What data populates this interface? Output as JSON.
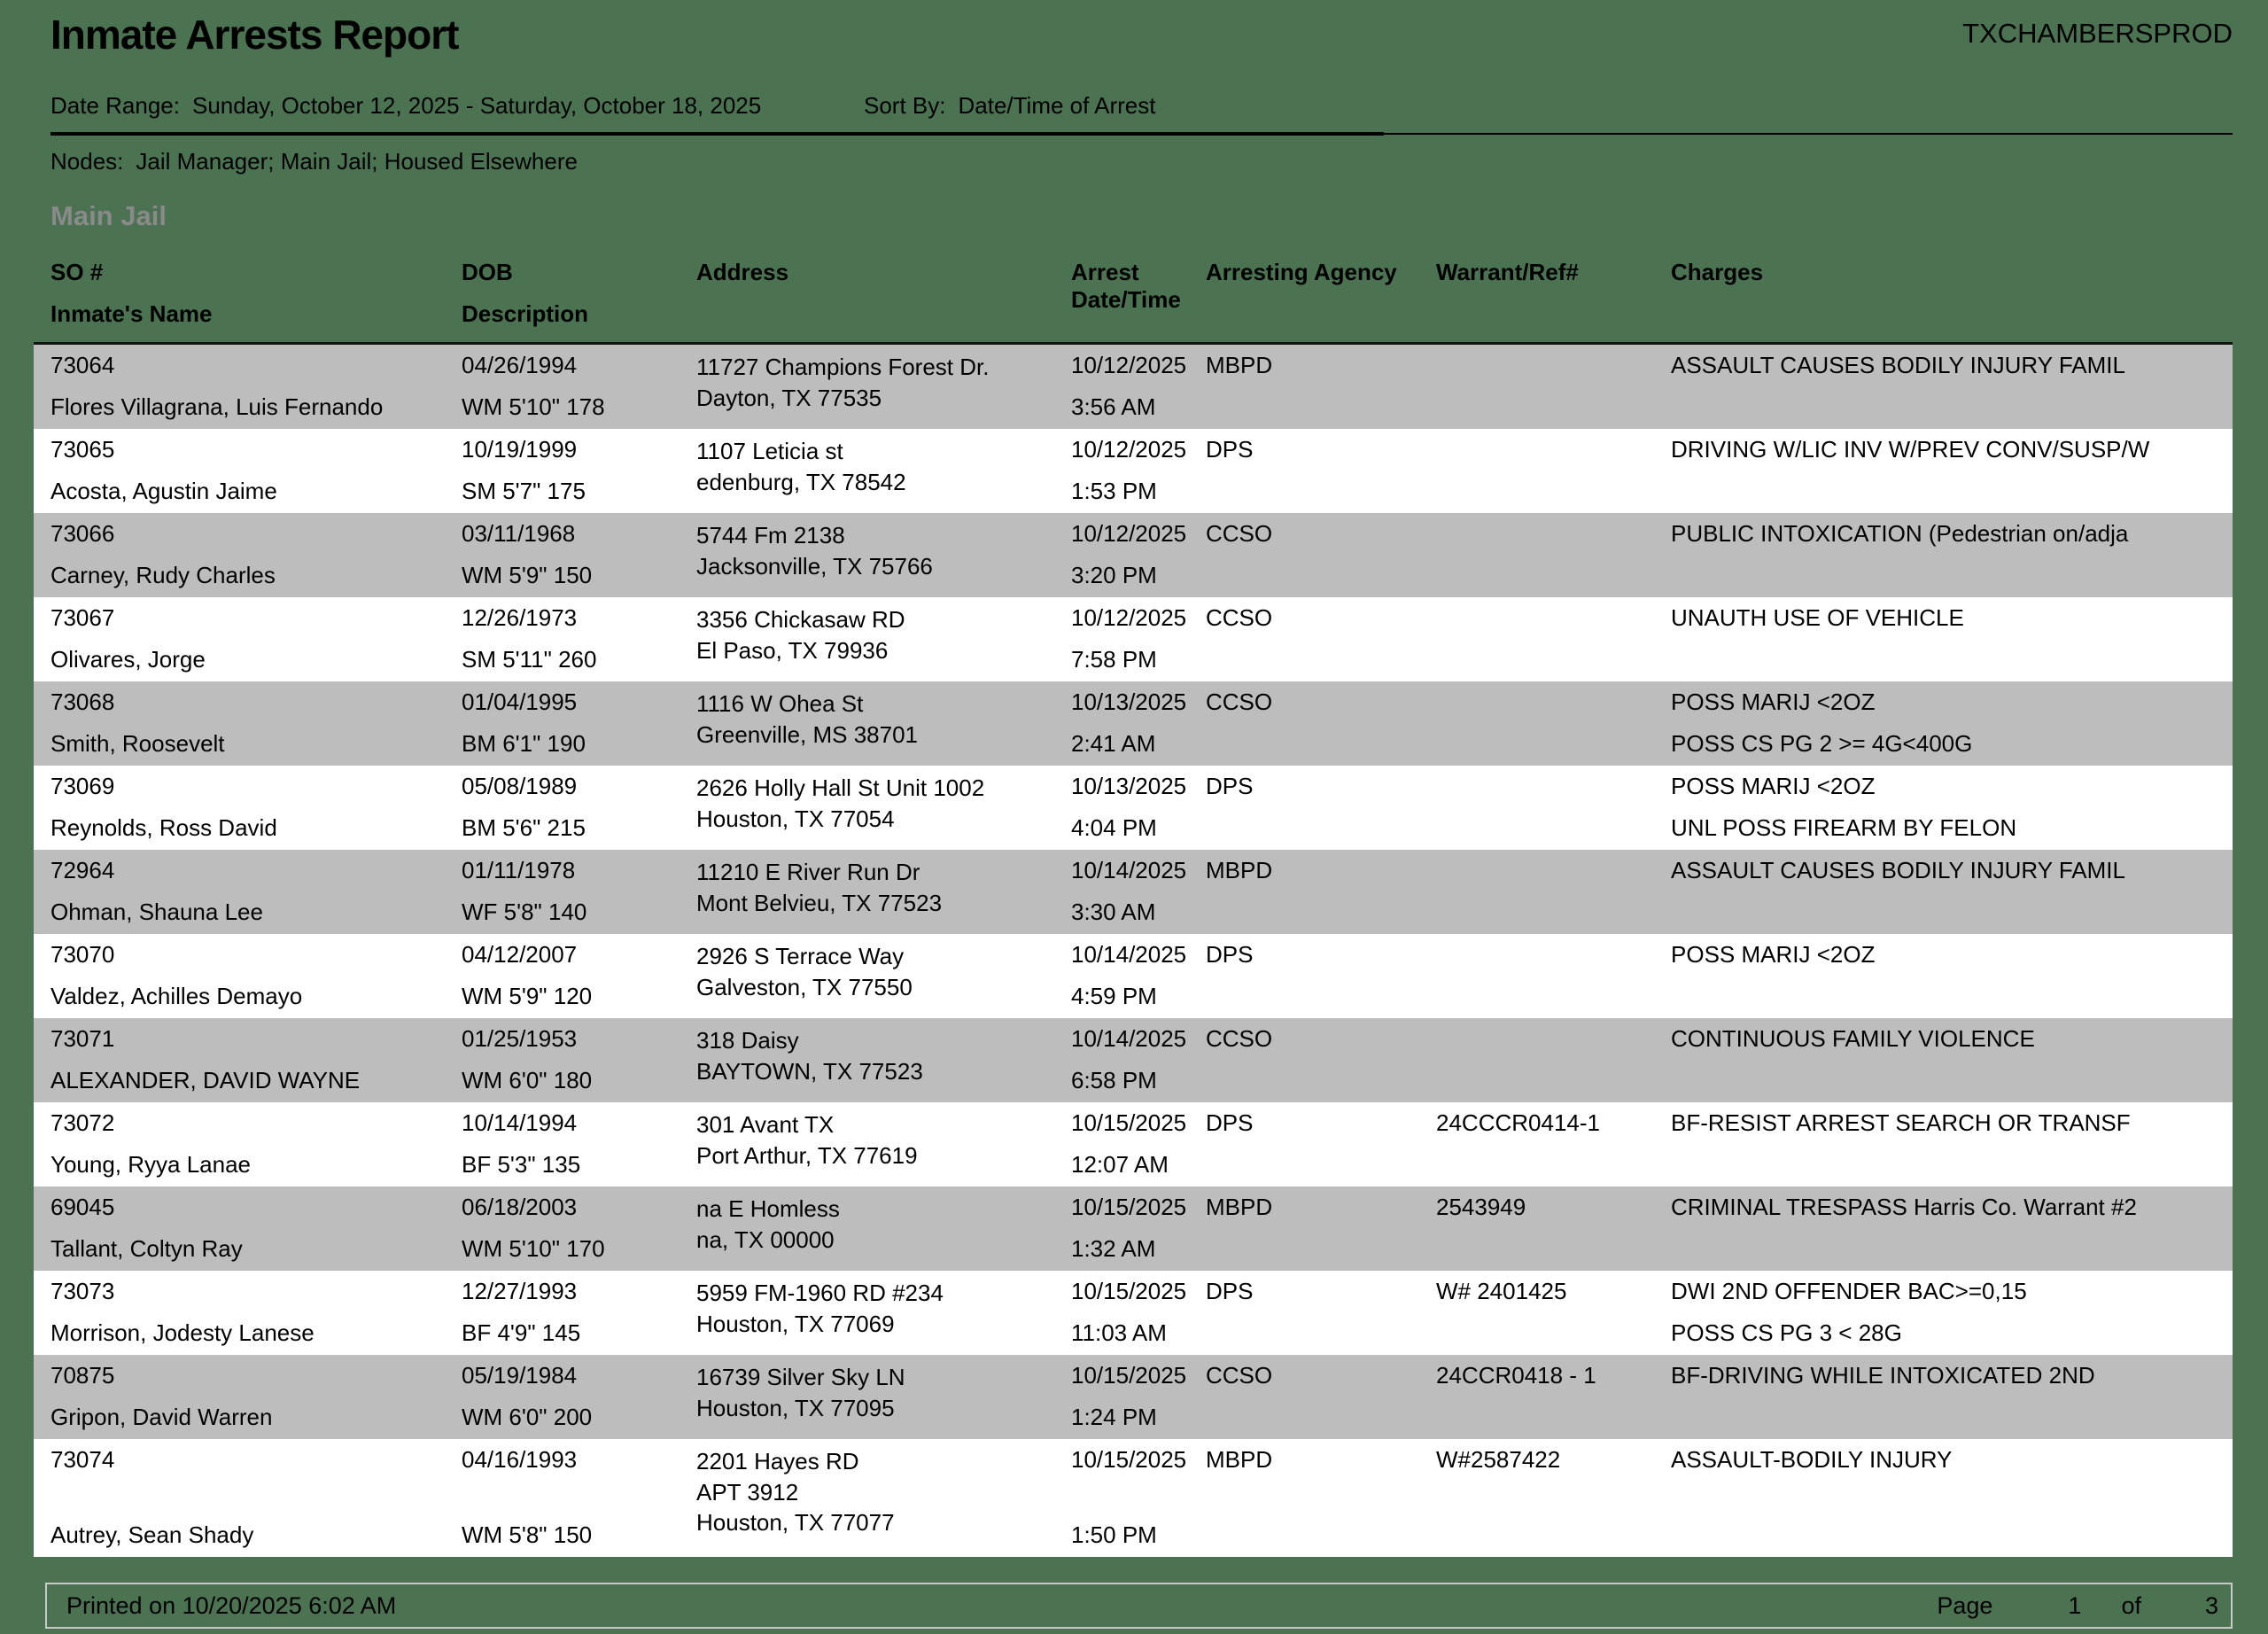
{
  "report": {
    "title": "Inmate Arrests Report",
    "environment": "TXCHAMBERSPROD",
    "date_range_label": "Date Range:",
    "date_range": "Sunday, October 12, 2025 - Saturday, October 18, 2025",
    "sort_by_label": "Sort By:",
    "sort_by": "Date/Time of Arrest",
    "nodes_label": "Nodes:",
    "nodes": "Jail Manager; Main Jail; Housed Elsewhere",
    "section": "Main Jail"
  },
  "table": {
    "headers": {
      "so": "SO #",
      "inmate_name": "Inmate's Name",
      "dob": "DOB",
      "description": "Description",
      "address": "Address",
      "arrest_line1": "Arrest",
      "arrest_line2": "Date/Time",
      "arresting_agency": "Arresting Agency",
      "warrant_ref": "Warrant/Ref#",
      "charges": "Charges"
    },
    "rows": [
      {
        "so": "73064",
        "name": "Flores Villagrana, Luis Fernando",
        "dob": "04/26/1994",
        "desc": "WM  5'10\" 178",
        "address": [
          "11727 Champions Forest Dr.",
          "Dayton, TX 77535"
        ],
        "date": "10/12/2025",
        "time": "3:56 AM",
        "agency": "MBPD",
        "warrant": "",
        "charges": [
          "ASSAULT CAUSES BODILY INJURY FAMIL"
        ]
      },
      {
        "so": "73065",
        "name": "Acosta, Agustin Jaime",
        "dob": "10/19/1999",
        "desc": "SM  5'7\" 175",
        "address": [
          "1107 Leticia st",
          "edenburg, TX 78542"
        ],
        "date": "10/12/2025",
        "time": "1:53 PM",
        "agency": "DPS",
        "warrant": "",
        "charges": [
          "DRIVING W/LIC INV W/PREV CONV/SUSP/W"
        ]
      },
      {
        "so": "73066",
        "name": "Carney, Rudy Charles",
        "dob": "03/11/1968",
        "desc": "WM  5'9\" 150",
        "address": [
          "5744 Fm 2138",
          "Jacksonville, TX 75766"
        ],
        "date": "10/12/2025",
        "time": "3:20 PM",
        "agency": "CCSO",
        "warrant": "",
        "charges": [
          "PUBLIC INTOXICATION (Pedestrian on/adja"
        ]
      },
      {
        "so": "73067",
        "name": "Olivares, Jorge",
        "dob": "12/26/1973",
        "desc": "SM  5'11\" 260",
        "address": [
          "3356 Chickasaw RD",
          "El Paso, TX 79936"
        ],
        "date": "10/12/2025",
        "time": "7:58 PM",
        "agency": "CCSO",
        "warrant": "",
        "charges": [
          "UNAUTH USE OF VEHICLE"
        ]
      },
      {
        "so": "73068",
        "name": "Smith, Roosevelt",
        "dob": "01/04/1995",
        "desc": "BM  6'1\" 190",
        "address": [
          "1116 W Ohea St",
          "Greenville, MS 38701"
        ],
        "date": "10/13/2025",
        "time": "2:41 AM",
        "agency": "CCSO",
        "warrant": "",
        "charges": [
          "POSS MARIJ <2OZ",
          "POSS CS PG 2 >= 4G<400G"
        ]
      },
      {
        "so": "73069",
        "name": "Reynolds, Ross David",
        "dob": "05/08/1989",
        "desc": "BM  5'6\" 215",
        "address": [
          "2626 Holly Hall St Unit 1002",
          "Houston, TX 77054"
        ],
        "date": "10/13/2025",
        "time": "4:04 PM",
        "agency": "DPS",
        "warrant": "",
        "charges": [
          "POSS MARIJ <2OZ",
          "UNL POSS FIREARM BY FELON"
        ]
      },
      {
        "so": "72964",
        "name": "Ohman, Shauna Lee",
        "dob": "01/11/1978",
        "desc": "WF  5'8\" 140",
        "address": [
          "11210 E River Run Dr",
          "Mont Belvieu, TX 77523"
        ],
        "date": "10/14/2025",
        "time": "3:30 AM",
        "agency": "MBPD",
        "warrant": "",
        "charges": [
          "ASSAULT CAUSES BODILY INJURY FAMIL"
        ]
      },
      {
        "so": "73070",
        "name": "Valdez, Achilles Demayo",
        "dob": "04/12/2007",
        "desc": "WM  5'9\" 120",
        "address": [
          "2926 S Terrace Way",
          "Galveston, TX 77550"
        ],
        "date": "10/14/2025",
        "time": "4:59 PM",
        "agency": "DPS",
        "warrant": "",
        "charges": [
          "POSS MARIJ <2OZ"
        ]
      },
      {
        "so": "73071",
        "name": "ALEXANDER, DAVID WAYNE",
        "dob": "01/25/1953",
        "desc": "WM  6'0\" 180",
        "address": [
          "318 Daisy",
          "BAYTOWN, TX 77523"
        ],
        "date": "10/14/2025",
        "time": "6:58 PM",
        "agency": "CCSO",
        "warrant": "",
        "charges": [
          "CONTINUOUS FAMILY VIOLENCE"
        ]
      },
      {
        "so": "73072",
        "name": "Young, Ryya Lanae",
        "dob": "10/14/1994",
        "desc": "BF  5'3\" 135",
        "address": [
          "301 Avant TX",
          "Port Arthur, TX 77619"
        ],
        "date": "10/15/2025",
        "time": "12:07 AM",
        "agency": "DPS",
        "warrant": "24CCCR0414-1",
        "charges": [
          "BF-RESIST ARREST SEARCH OR TRANSF"
        ]
      },
      {
        "so": "69045",
        "name": "Tallant, Coltyn Ray",
        "dob": "06/18/2003",
        "desc": "WM  5'10\" 170",
        "address": [
          "na E Homless",
          "na, TX 00000"
        ],
        "date": "10/15/2025",
        "time": "1:32 AM",
        "agency": "MBPD",
        "warrant": "2543949",
        "charges": [
          "CRIMINAL TRESPASS Harris Co. Warrant #2"
        ]
      },
      {
        "so": "73073",
        "name": "Morrison, Jodesty Lanese",
        "dob": "12/27/1993",
        "desc": "BF  4'9\" 145",
        "address": [
          "5959 FM-1960 RD #234",
          "Houston, TX 77069"
        ],
        "date": "10/15/2025",
        "time": "11:03 AM",
        "agency": "DPS",
        "warrant": "W# 2401425",
        "charges": [
          "DWI 2ND OFFENDER BAC>=0,15",
          "POSS CS PG 3 < 28G"
        ]
      },
      {
        "so": "70875",
        "name": "Gripon, David Warren",
        "dob": "05/19/1984",
        "desc": "WM  6'0\" 200",
        "address": [
          "16739 Silver Sky LN",
          "Houston, TX 77095"
        ],
        "date": "10/15/2025",
        "time": "1:24 PM",
        "agency": "CCSO",
        "warrant": "24CCR0418 - 1",
        "charges": [
          "BF-DRIVING WHILE INTOXICATED 2ND"
        ]
      },
      {
        "so": "73074",
        "name": "Autrey, Sean Shady",
        "dob": "04/16/1993",
        "desc": "WM  5'8\" 150",
        "address": [
          "2201 Hayes RD",
          "APT 3912",
          "Houston, TX 77077"
        ],
        "date": "10/15/2025",
        "time": "1:50 PM",
        "agency": "MBPD",
        "warrant": "W#2587422",
        "charges": [
          "ASSAULT-BODILY INJURY"
        ]
      }
    ]
  },
  "footer": {
    "printed": "Printed on 10/20/2025 6:02 AM",
    "page_label": "Page",
    "page_number": "1",
    "of_label": "of",
    "page_total": "3"
  },
  "colors": {
    "page_background": "#4B7251",
    "row_alt_background": "#BDBDBD",
    "row_background": "#FFFFFF",
    "section_title_gray": "#8A8A8A",
    "footer_border": "#C9C9C9"
  }
}
